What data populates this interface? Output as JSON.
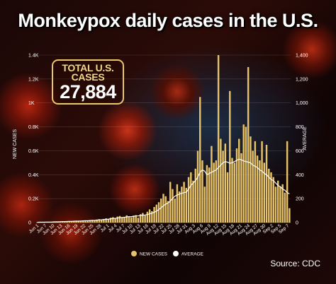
{
  "header": {
    "title": "Monkeypox daily cases in the U.S."
  },
  "badge": {
    "label": "TOTAL U.S. CASES",
    "value": "27,884"
  },
  "footer": {
    "source": "Source: CDC"
  },
  "colors": {
    "bar": "#e6c368",
    "line": "#ffffff",
    "badge_border": "#e8c66a"
  },
  "chart_data": {
    "type": "bar",
    "ylabel": "NEW CASES",
    "y2label": "AVERAGE",
    "ylim": [
      0,
      1400
    ],
    "yticks": [
      0,
      200,
      400,
      600,
      800,
      1000,
      1200,
      1400
    ],
    "ytick_labels": [
      "0",
      "0.2K",
      "0.4K",
      "0.6K",
      "0.8K",
      "1K",
      "1.2K",
      "1.4K"
    ],
    "y2ticks": [
      0,
      200,
      400,
      600,
      800,
      1000,
      1200,
      1400
    ],
    "y2tick_labels": [
      "0",
      "200",
      "400",
      "600",
      "800",
      "1,000",
      "1,200",
      "1,400"
    ],
    "xtick_labels": [
      "Jun 1",
      "Jun 7",
      "Jun 10",
      "Jun 13",
      "Jun 16",
      "Jun 19",
      "Jun 22",
      "Jun 25",
      "Jun 28",
      "Jul 1",
      "Jul 4",
      "Jul 7",
      "Jul 10",
      "Jul 13",
      "Jul 16",
      "Jul 19",
      "Jul 22",
      "Jul 25",
      "Jul 28",
      "Jul 31",
      "Aug 3",
      "Aug 6",
      "Aug 9",
      "Aug 12",
      "Aug 15",
      "Aug 18",
      "Aug 21",
      "Aug 24",
      "Aug 27",
      "Aug 30",
      "Sep 2",
      "Sep 5",
      "Sep 7"
    ],
    "grid": true,
    "legend_position": "bottom",
    "series": [
      {
        "name": "NEW CASES",
        "type": "bar",
        "values": [
          2,
          3,
          4,
          3,
          5,
          6,
          4,
          7,
          8,
          6,
          9,
          10,
          8,
          11,
          12,
          10,
          13,
          15,
          12,
          14,
          16,
          18,
          15,
          20,
          22,
          18,
          25,
          28,
          24,
          30,
          35,
          28,
          40,
          45,
          38,
          50,
          55,
          42,
          48,
          60,
          52,
          45,
          58,
          62,
          40,
          70,
          80,
          60,
          90,
          110,
          95,
          130,
          150,
          170,
          200,
          240,
          220,
          180,
          340,
          280,
          200,
          320,
          260,
          300,
          340,
          290,
          380,
          420,
          350,
          450,
          600,
          1050,
          520,
          300,
          480,
          460,
          640,
          500,
          520,
          1400,
          700,
          600,
          660,
          420,
          1100,
          540,
          500,
          620,
          700,
          580,
          820,
          800,
          1300,
          720,
          600,
          680,
          560,
          520,
          680,
          500,
          650,
          450,
          420,
          380,
          300,
          350,
          300,
          320,
          250,
          680,
          120
        ]
      },
      {
        "name": "AVERAGE",
        "type": "line",
        "values": [
          2,
          3,
          3,
          3,
          4,
          4,
          4,
          5,
          6,
          6,
          7,
          8,
          8,
          9,
          10,
          10,
          11,
          12,
          12,
          13,
          14,
          15,
          15,
          17,
          18,
          18,
          20,
          22,
          23,
          25,
          27,
          28,
          31,
          34,
          35,
          38,
          41,
          42,
          44,
          47,
          49,
          50,
          52,
          55,
          55,
          58,
          62,
          63,
          67,
          73,
          78,
          86,
          96,
          108,
          124,
          140,
          154,
          163,
          180,
          200,
          220,
          230,
          238,
          245,
          250,
          255,
          280,
          310,
          330,
          350,
          380,
          420,
          440,
          430,
          400,
          410,
          420,
          430,
          440,
          460,
          480,
          500,
          510,
          505,
          495,
          500,
          510,
          520,
          530,
          525,
          515,
          510,
          505,
          500,
          480,
          470,
          460,
          440,
          430,
          410,
          400,
          380,
          360,
          350,
          330,
          310,
          300,
          280,
          270,
          250,
          240
        ]
      }
    ]
  }
}
